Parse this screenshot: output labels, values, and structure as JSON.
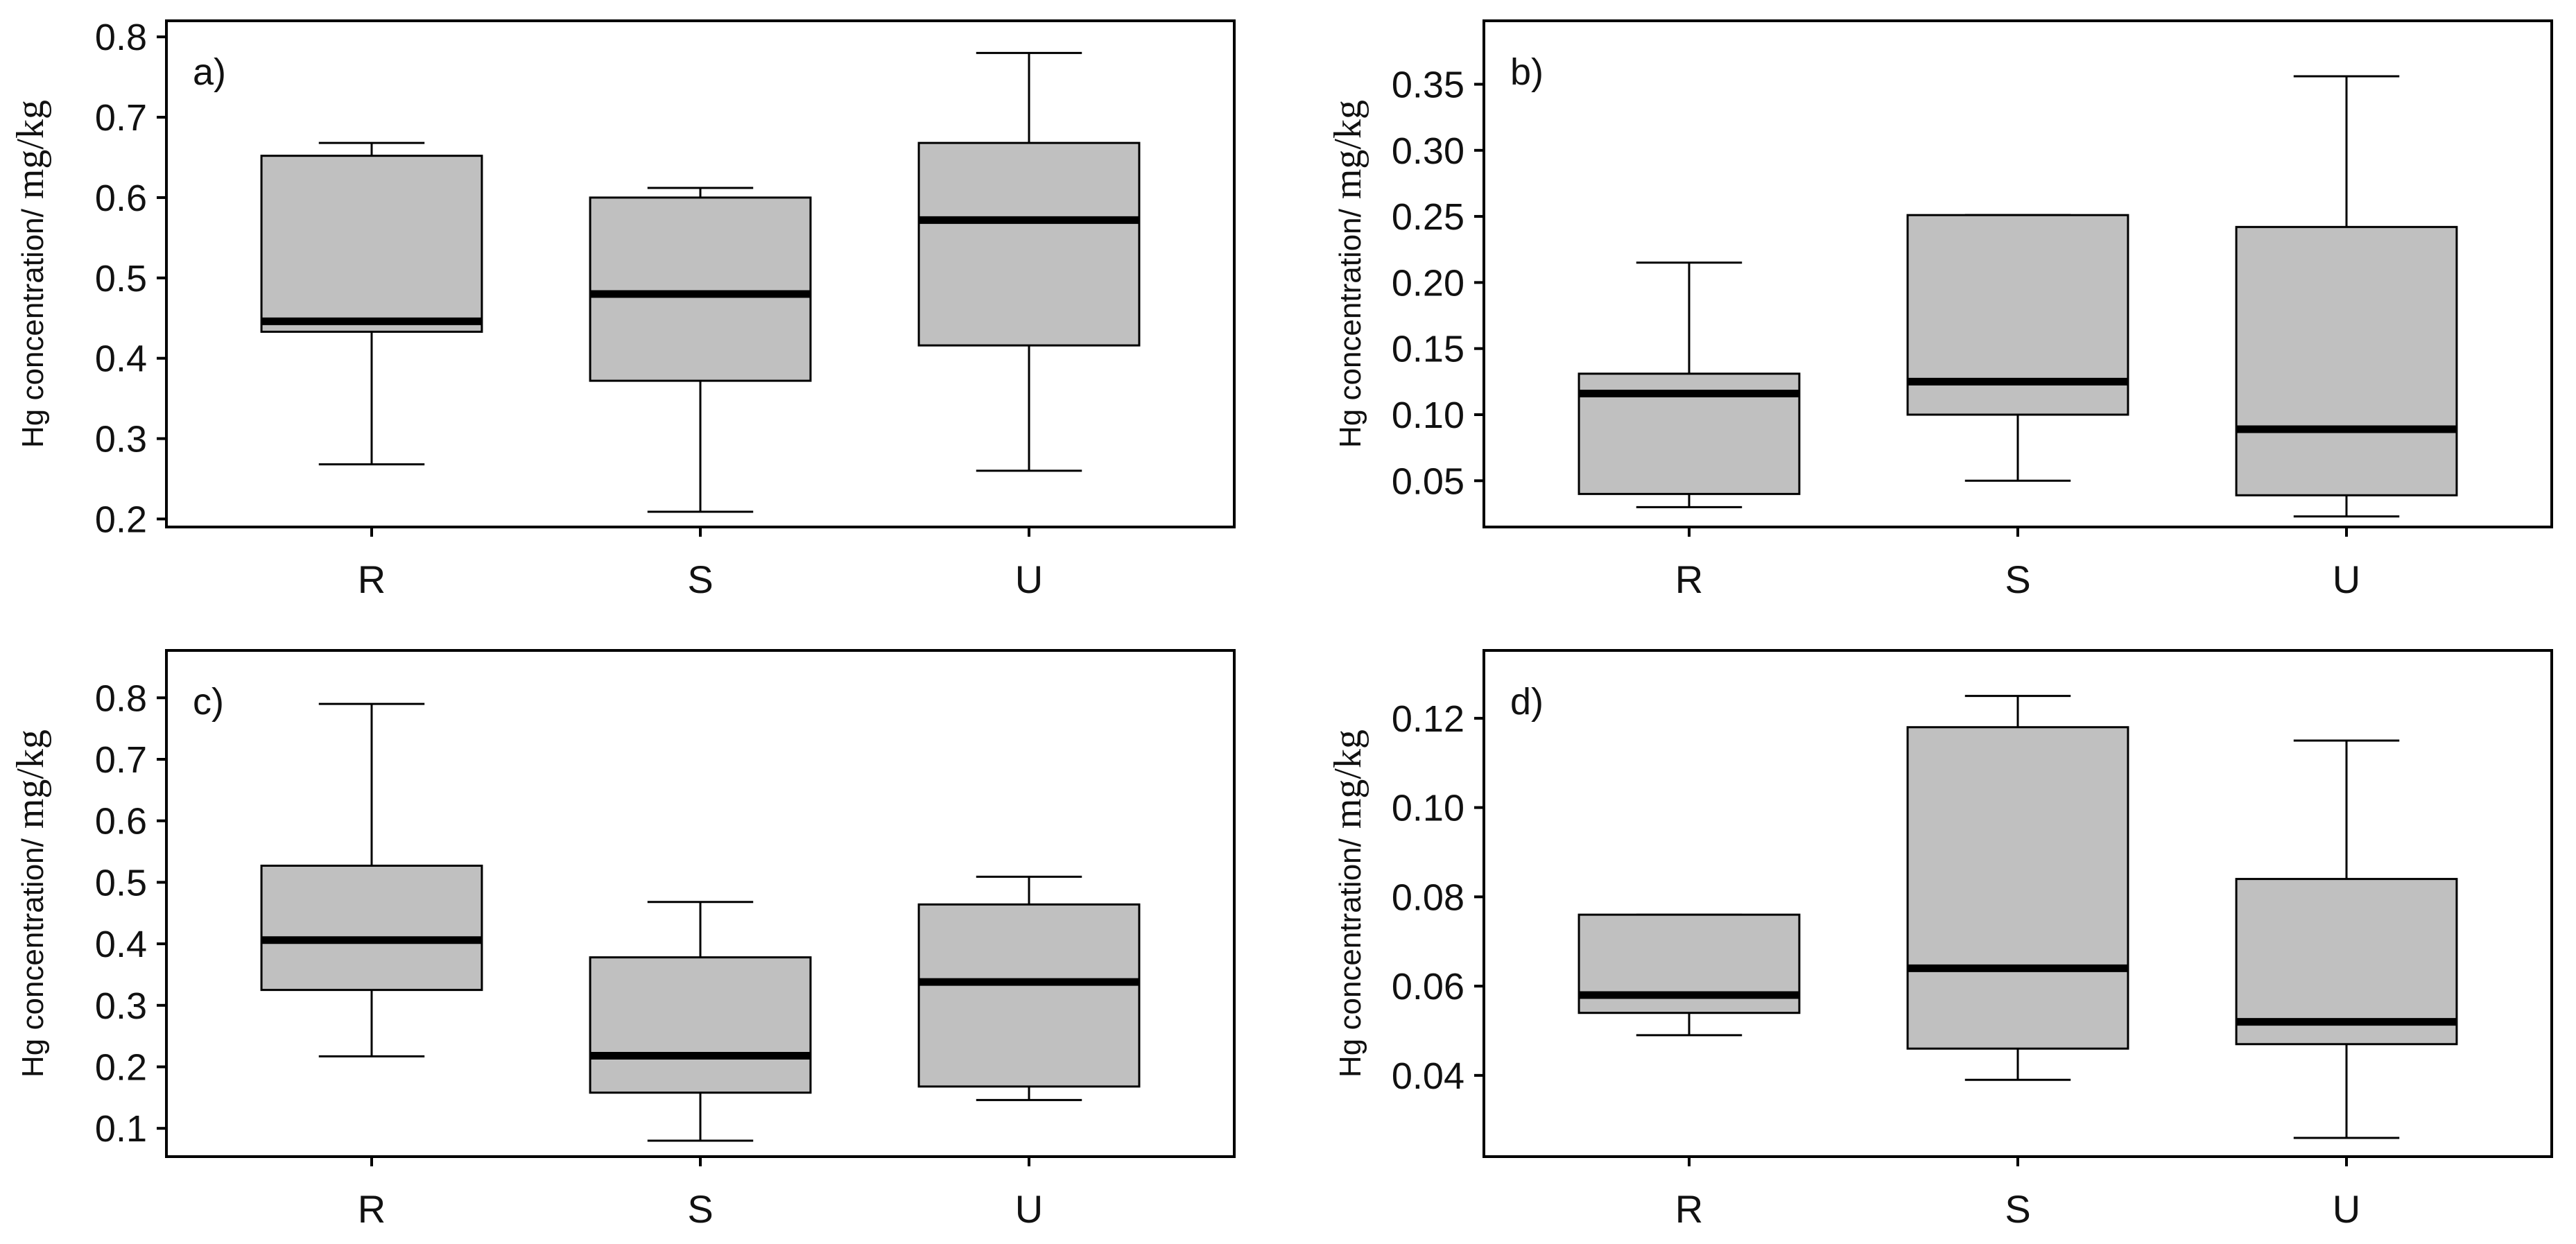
{
  "colors": {
    "box_fill": "#c0c0c0",
    "stroke": "#000000",
    "background": "#ffffff"
  },
  "chart_data": [
    {
      "type": "box",
      "panel_label": "a)",
      "title": "",
      "xlabel": "",
      "ylabel": "Hg concentration/",
      "ylabel_unit": "mg/kg",
      "categories": [
        "R",
        "S",
        "U"
      ],
      "ylim": [
        0.19,
        0.82
      ],
      "yticks": [
        0.2,
        0.3,
        0.4,
        0.5,
        0.6,
        0.7,
        0.8
      ],
      "ytick_labels": [
        "0.2",
        "0.3",
        "0.4",
        "0.5",
        "0.6",
        "0.7",
        "0.8"
      ],
      "boxes": [
        {
          "category": "R",
          "whisker_low": 0.268,
          "q1": 0.433,
          "median": 0.446,
          "q3": 0.652,
          "whisker_high": 0.668
        },
        {
          "category": "S",
          "whisker_low": 0.209,
          "q1": 0.372,
          "median": 0.48,
          "q3": 0.6,
          "whisker_high": 0.612
        },
        {
          "category": "U",
          "whisker_low": 0.26,
          "q1": 0.416,
          "median": 0.572,
          "q3": 0.668,
          "whisker_high": 0.78
        }
      ]
    },
    {
      "type": "box",
      "panel_label": "b)",
      "title": "",
      "xlabel": "",
      "ylabel": "Hg concentration/",
      "ylabel_unit": "mg/kg",
      "categories": [
        "R",
        "S",
        "U"
      ],
      "ylim": [
        0.015,
        0.398
      ],
      "yticks": [
        0.05,
        0.1,
        0.15,
        0.2,
        0.25,
        0.3,
        0.35
      ],
      "ytick_labels": [
        "0.05",
        "0.10",
        "0.15",
        "0.20",
        "0.25",
        "0.30",
        "0.35"
      ],
      "boxes": [
        {
          "category": "R",
          "whisker_low": 0.03,
          "q1": 0.04,
          "median": 0.116,
          "q3": 0.131,
          "whisker_high": 0.215
        },
        {
          "category": "S",
          "whisker_low": 0.05,
          "q1": 0.1,
          "median": 0.125,
          "q3": 0.251,
          "whisker_high": 0.251
        },
        {
          "category": "U",
          "whisker_low": 0.023,
          "q1": 0.039,
          "median": 0.089,
          "q3": 0.242,
          "whisker_high": 0.356
        }
      ]
    },
    {
      "type": "box",
      "panel_label": "c)",
      "title": "",
      "xlabel": "",
      "ylabel": "Hg concentration/",
      "ylabel_unit": "mg/kg",
      "categories": [
        "R",
        "S",
        "U"
      ],
      "ylim": [
        0.054,
        0.877
      ],
      "yticks": [
        0.1,
        0.2,
        0.3,
        0.4,
        0.5,
        0.6,
        0.7,
        0.8
      ],
      "ytick_labels": [
        "0.1",
        "0.2",
        "0.3",
        "0.4",
        "0.5",
        "0.6",
        "0.7",
        "0.8"
      ],
      "boxes": [
        {
          "category": "R",
          "whisker_low": 0.217,
          "q1": 0.325,
          "median": 0.406,
          "q3": 0.527,
          "whisker_high": 0.79
        },
        {
          "category": "S",
          "whisker_low": 0.08,
          "q1": 0.158,
          "median": 0.218,
          "q3": 0.378,
          "whisker_high": 0.468
        },
        {
          "category": "U",
          "whisker_low": 0.146,
          "q1": 0.168,
          "median": 0.338,
          "q3": 0.464,
          "whisker_high": 0.509
        }
      ]
    },
    {
      "type": "box",
      "panel_label": "d)",
      "title": "",
      "xlabel": "",
      "ylabel": "Hg concentration/",
      "ylabel_unit": "mg/kg",
      "categories": [
        "R",
        "S",
        "U"
      ],
      "ylim": [
        0.0218,
        0.1352
      ],
      "yticks": [
        0.04,
        0.06,
        0.08,
        0.1,
        0.12
      ],
      "ytick_labels": [
        "0.04",
        "0.06",
        "0.08",
        "0.10",
        "0.12"
      ],
      "boxes": [
        {
          "category": "R",
          "whisker_low": 0.049,
          "q1": 0.054,
          "median": 0.058,
          "q3": 0.076,
          "whisker_high": 0.076
        },
        {
          "category": "S",
          "whisker_low": 0.039,
          "q1": 0.046,
          "median": 0.064,
          "q3": 0.118,
          "whisker_high": 0.125
        },
        {
          "category": "U",
          "whisker_low": 0.026,
          "q1": 0.047,
          "median": 0.052,
          "q3": 0.084,
          "whisker_high": 0.115
        }
      ]
    }
  ]
}
